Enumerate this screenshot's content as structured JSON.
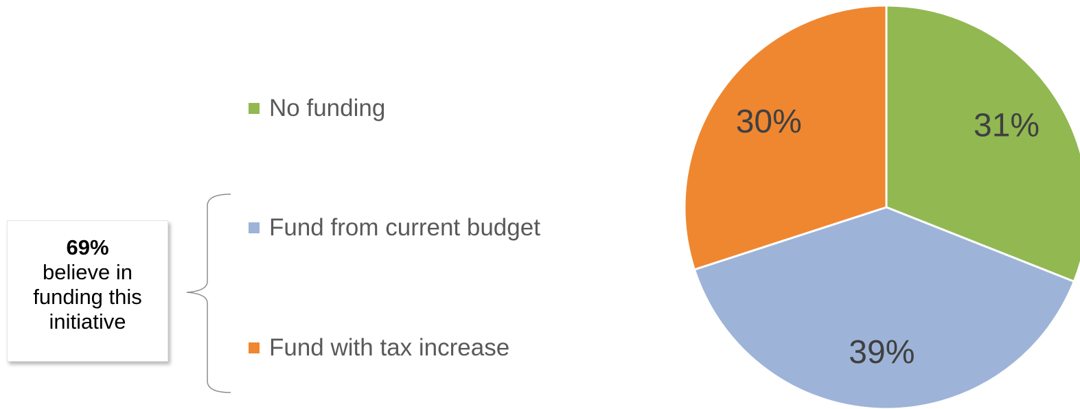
{
  "callout": {
    "percent": "69%",
    "text": "believe in funding this initiative"
  },
  "chart_data": {
    "type": "pie",
    "categories": [
      "No funding",
      "Fund from current budget",
      "Fund with tax increase"
    ],
    "values": [
      31,
      39,
      30
    ],
    "labels": [
      "31%",
      "39%",
      "30%"
    ],
    "colors": [
      "#92b852",
      "#9eb3d8",
      "#ef8731"
    ],
    "legend_position": "left",
    "start_angle_deg": 0,
    "direction": "clockwise",
    "title": "",
    "xlabel": "",
    "ylabel": ""
  }
}
